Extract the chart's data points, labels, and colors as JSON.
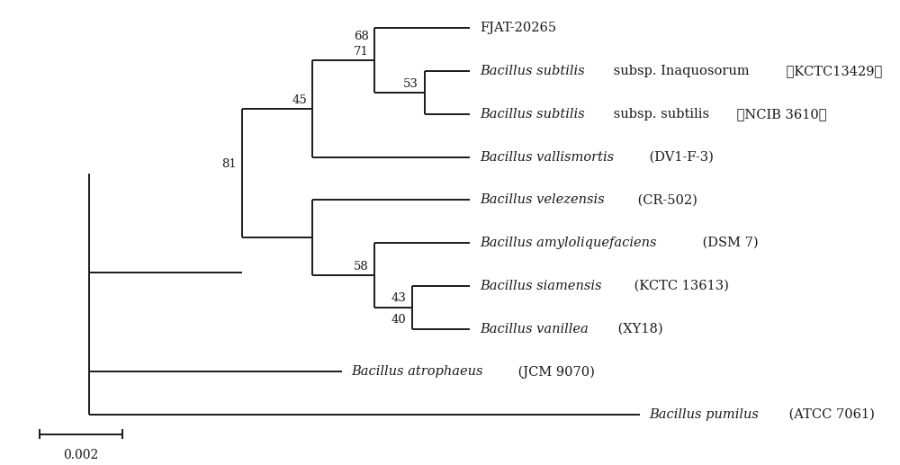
{
  "background_color": "#ffffff",
  "scale_bar_label": "0.002",
  "line_color": "#1a1a1a",
  "text_color": "#1a1a1a",
  "fontsize": 10.5,
  "bootstrap_fontsize": 9.5,
  "lw": 1.4,
  "taxa_labels": [
    [
      [
        "FJAT-20265",
        false
      ]
    ],
    [
      [
        "Bacillus subtilis",
        true
      ],
      [
        " subsp. Inaquosorum",
        false
      ],
      [
        " （KCTC13429）",
        false
      ]
    ],
    [
      [
        "Bacillus subtilis",
        true
      ],
      [
        " subsp. subtilis",
        false
      ],
      [
        " （NCIB 3610）",
        false
      ]
    ],
    [
      [
        "Bacillus vallismortis",
        true
      ],
      [
        " (DV1-F-3)",
        false
      ]
    ],
    [
      [
        "Bacillus velezensis",
        true
      ],
      [
        " (CR-502)",
        false
      ]
    ],
    [
      [
        "Bacillus amyloliquefaciens",
        true
      ],
      [
        " (DSM 7)",
        false
      ]
    ],
    [
      [
        "Bacillus siamensis",
        true
      ],
      [
        " (KCTC 13613)",
        false
      ]
    ],
    [
      [
        "Bacillus vanillea",
        true
      ],
      [
        " (XY18)",
        false
      ]
    ],
    [
      [
        "Bacillus atrophaeus",
        true
      ],
      [
        " (JCM 9070)",
        false
      ]
    ],
    [
      [
        "Bacillus pumilus",
        true
      ],
      [
        " (ATCC 7061)",
        false
      ]
    ]
  ]
}
